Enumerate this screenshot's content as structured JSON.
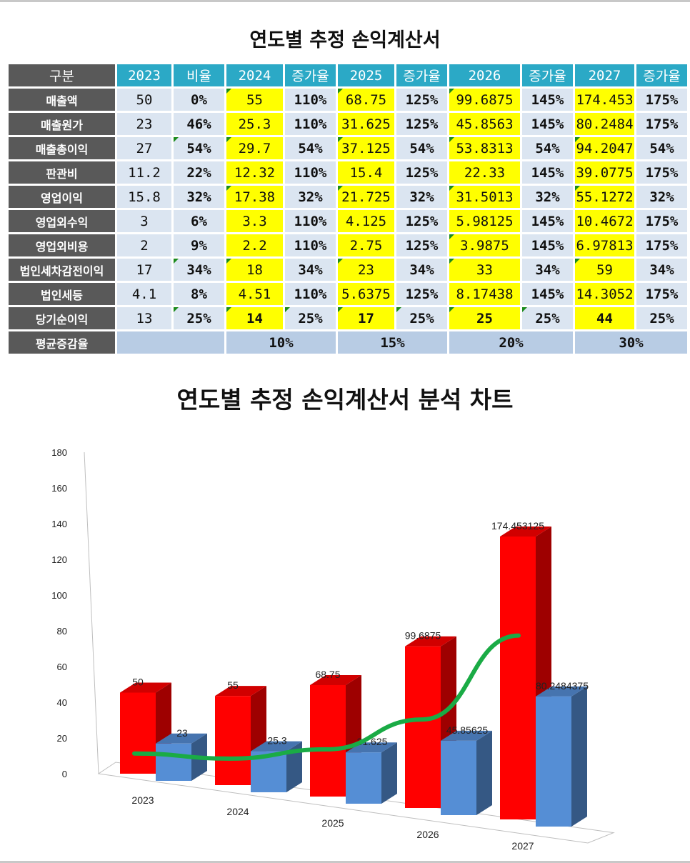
{
  "table": {
    "title": "연도별 추정 손익계산서",
    "header": [
      "구분",
      "2023",
      "비율",
      "2024",
      "증가율",
      "2025",
      "증가율",
      "2026",
      "증가율",
      "2027",
      "증가율"
    ],
    "rows": [
      {
        "label": "매출액",
        "values": [
          "50",
          "0%",
          "55",
          "110%",
          "68.75",
          "125%",
          "99.6875",
          "145%",
          "174.453",
          "175%"
        ]
      },
      {
        "label": "매출원가",
        "values": [
          "23",
          "46%",
          "25.3",
          "110%",
          "31.625",
          "125%",
          "45.8563",
          "145%",
          "80.2484",
          "175%"
        ]
      },
      {
        "label": "매출총이익",
        "values": [
          "27",
          "54%",
          "29.7",
          "54%",
          "37.125",
          "54%",
          "53.8313",
          "54%",
          "94.2047",
          "54%"
        ]
      },
      {
        "label": "판관비",
        "values": [
          "11.2",
          "22%",
          "12.32",
          "110%",
          "15.4",
          "125%",
          "22.33",
          "145%",
          "39.0775",
          "175%"
        ]
      },
      {
        "label": "영업이익",
        "values": [
          "15.8",
          "32%",
          "17.38",
          "32%",
          "21.725",
          "32%",
          "31.5013",
          "32%",
          "55.1272",
          "32%"
        ]
      },
      {
        "label": "영업외수익",
        "values": [
          "3",
          "6%",
          "3.3",
          "110%",
          "4.125",
          "125%",
          "5.98125",
          "145%",
          "10.4672",
          "175%"
        ]
      },
      {
        "label": "영업외비용",
        "values": [
          "2",
          "9%",
          "2.2",
          "110%",
          "2.75",
          "125%",
          "3.9875",
          "145%",
          "6.97813",
          "175%"
        ]
      },
      {
        "label": "법인세차감전이익",
        "values": [
          "17",
          "34%",
          "18",
          "34%",
          "23",
          "34%",
          "33",
          "34%",
          "59",
          "34%"
        ]
      },
      {
        "label": "법인세등",
        "values": [
          "4.1",
          "8%",
          "4.51",
          "110%",
          "5.6375",
          "125%",
          "8.17438",
          "145%",
          "14.3052",
          "175%"
        ]
      },
      {
        "label": "당기순이익",
        "values": [
          "13",
          "25%",
          "14",
          "25%",
          "17",
          "25%",
          "25",
          "25%",
          "44",
          "25%"
        ]
      }
    ],
    "avg_row": {
      "label": "평균증감율",
      "values": [
        "10%",
        "15%",
        "20%",
        "30%"
      ]
    }
  },
  "chart_data": {
    "type": "bar",
    "title": "연도별 추정 손익계산서 분석 차트",
    "categories": [
      "2023",
      "2024",
      "2025",
      "2026",
      "2027"
    ],
    "ylim": [
      0,
      180
    ],
    "yticks": [
      0,
      20,
      40,
      60,
      80,
      100,
      120,
      140,
      160,
      180
    ],
    "series": [
      {
        "values": [
          50,
          55,
          68.75,
          99.6875,
          174.453125
        ],
        "labels": [
          "50",
          "55",
          "68.75",
          "99.6875",
          "174.453125"
        ],
        "color": "#ff0000"
      },
      {
        "values": [
          23,
          25.3,
          31.625,
          45.85625,
          80.2484375
        ],
        "labels": [
          "23",
          "25.3",
          "31.625",
          "45.85625",
          "80.2484375"
        ],
        "color": "#558ed5"
      }
    ],
    "line": {
      "values": [
        10,
        14,
        27,
        53,
        113
      ],
      "color": "#1aab45"
    },
    "style": "3d-clustered",
    "grid": false,
    "legend": "none"
  }
}
